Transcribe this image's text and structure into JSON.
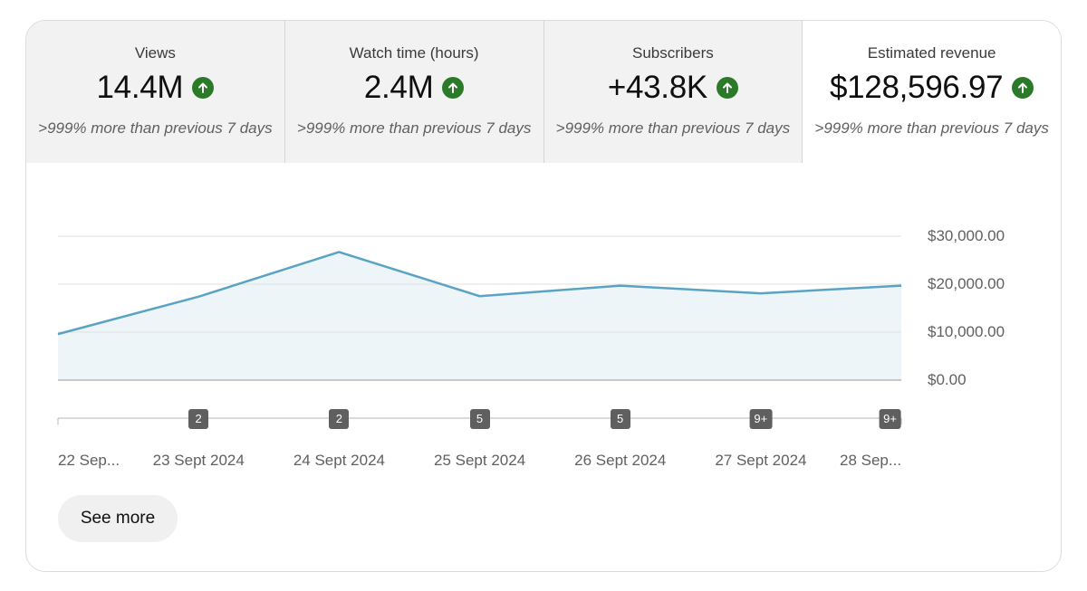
{
  "metrics": [
    {
      "title": "Views",
      "value": "14.4M",
      "change": ">999% more than previous 7 days",
      "selected": false
    },
    {
      "title": "Watch time (hours)",
      "value": "2.4M",
      "change": ">999% more than previous 7 days",
      "selected": false
    },
    {
      "title": "Subscribers",
      "value": "+43.8K",
      "change": ">999% more than previous 7 days",
      "selected": false
    },
    {
      "title": "Estimated revenue",
      "value": "$128,596.97",
      "change": ">999% more than previous 7 days",
      "selected": true
    }
  ],
  "colors": {
    "line": "#5aa3c4",
    "area": "#edf5f8",
    "trend_up": "#2b7a29",
    "badge": "#5f5f5f"
  },
  "chart_data": {
    "type": "area",
    "metric": "Estimated revenue",
    "categories": [
      "22 Sep...",
      "23 Sept 2024",
      "24 Sept 2024",
      "25 Sept 2024",
      "26 Sept 2024",
      "27 Sept 2024",
      "28 Sep..."
    ],
    "values": [
      9600,
      17400,
      26700,
      17500,
      19700,
      18100,
      19700
    ],
    "ylim": [
      0,
      30000
    ],
    "y_ticks": [
      0,
      10000,
      20000,
      30000
    ],
    "y_tick_labels": [
      "$0.00",
      "$10,000.00",
      "$20,000.00",
      "$30,000.00"
    ],
    "grid": true,
    "badges": [
      {
        "index": 1,
        "label": "2"
      },
      {
        "index": 2,
        "label": "2"
      },
      {
        "index": 3,
        "label": "5"
      },
      {
        "index": 4,
        "label": "5"
      },
      {
        "index": 5,
        "label": "9+"
      },
      {
        "index": 6,
        "label": "9+"
      }
    ]
  },
  "actions": {
    "see_more": "See more"
  }
}
